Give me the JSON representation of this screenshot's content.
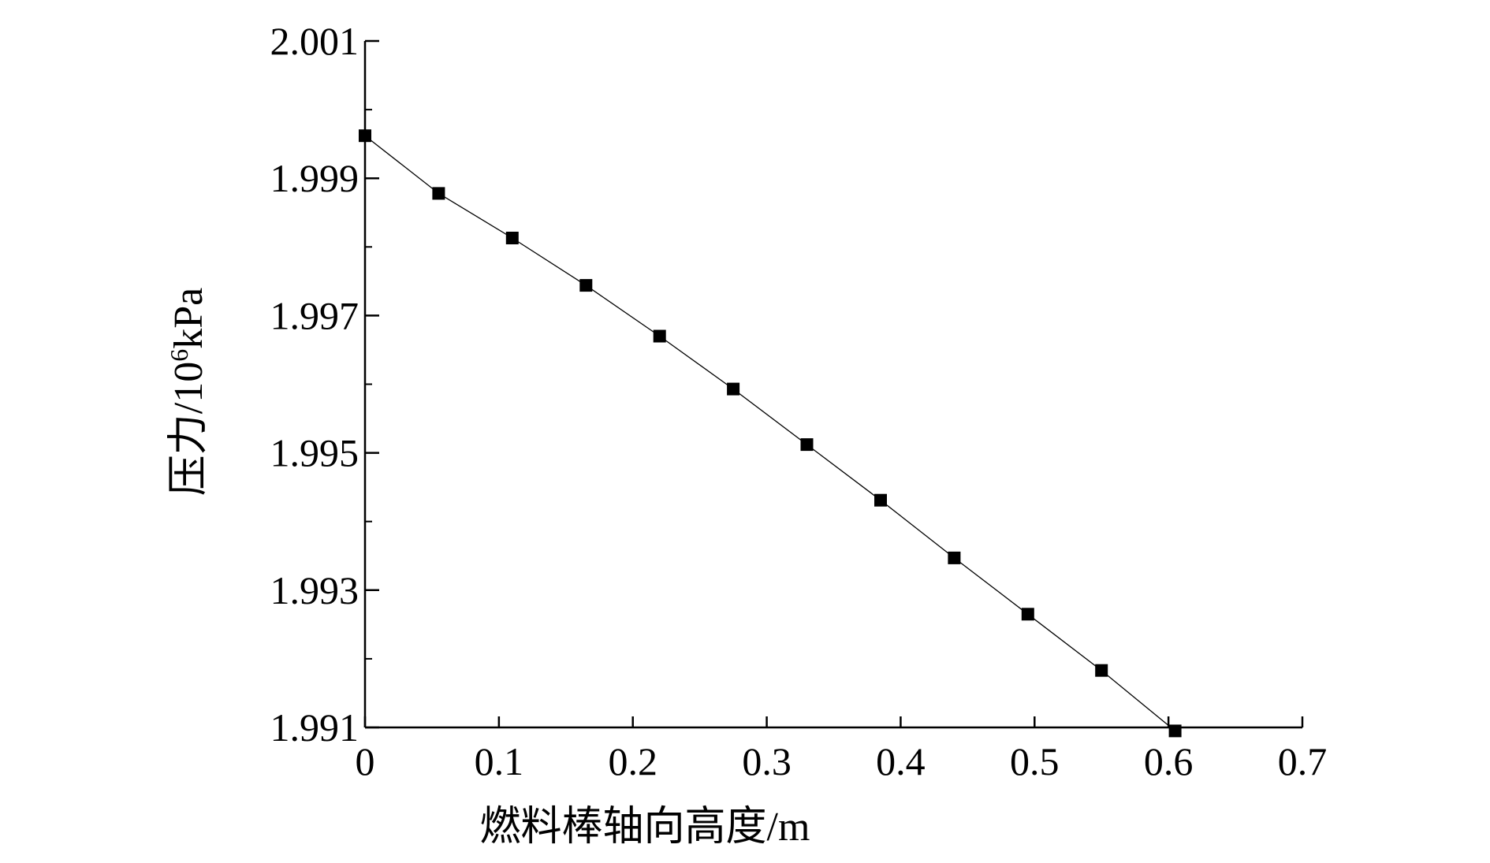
{
  "chart_data": {
    "type": "line",
    "title": "",
    "xlabel": "燃料棒轴向高度/m",
    "ylabel": {
      "prefix": "压力/10",
      "superscript": "6",
      "suffix": "kPa"
    },
    "xlim": [
      0,
      0.7
    ],
    "ylim": [
      1.991,
      2.001
    ],
    "x_ticks": [
      0,
      0.1,
      0.2,
      0.3,
      0.4,
      0.5,
      0.6,
      0.7
    ],
    "x_tick_labels": [
      "0",
      "0.1",
      "0.2",
      "0.3",
      "0.4",
      "0.5",
      "0.6",
      "0.7"
    ],
    "y_ticks": [
      1.991,
      1.993,
      1.995,
      1.997,
      1.999,
      2.001
    ],
    "y_tick_labels": [
      "1.991",
      "1.993",
      "1.995",
      "1.997",
      "1.999",
      "2.001"
    ],
    "y_minor_ticks": [
      1.992,
      1.994,
      1.996,
      1.998,
      2.0
    ],
    "grid": false,
    "legend": "none",
    "marker": "square",
    "color": "#000000",
    "series": [
      {
        "x": [
          0,
          0.055,
          0.11,
          0.165,
          0.22,
          0.275,
          0.33,
          0.385,
          0.44,
          0.495,
          0.55,
          0.605
        ],
        "y": [
          1.99962,
          1.99878,
          1.99813,
          1.99744,
          1.9967,
          1.99593,
          1.99512,
          1.99431,
          1.99347,
          1.99265,
          1.99183,
          1.99095
        ]
      }
    ]
  }
}
